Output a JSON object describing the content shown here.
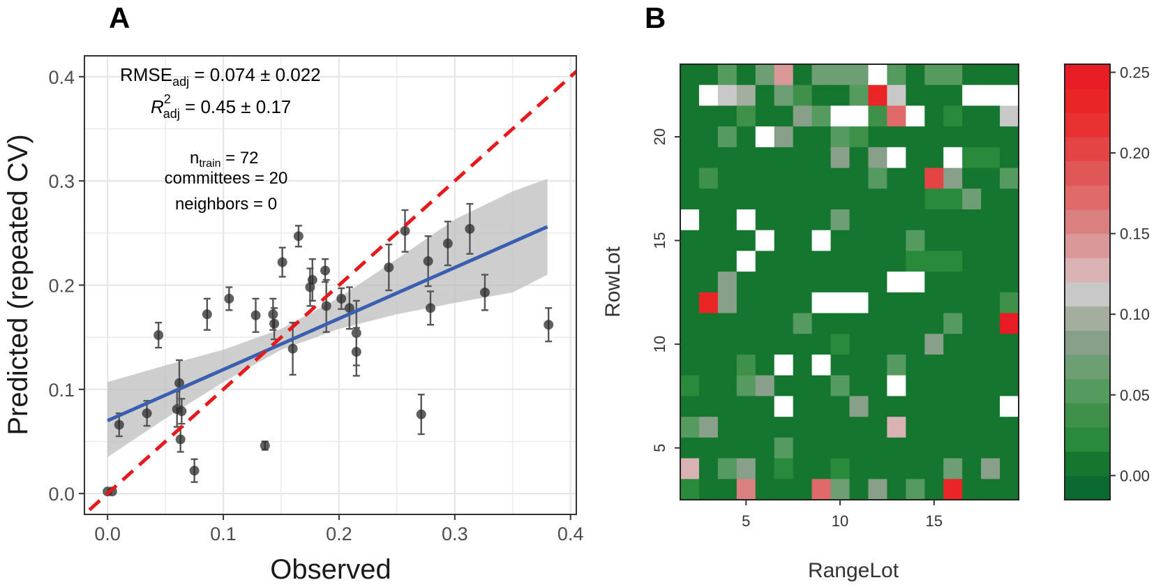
{
  "chart_data": [
    {
      "panel": "A",
      "type": "scatter",
      "xlabel": "Observed",
      "ylabel": "Predicted (repeated CV)",
      "xlim": [
        -0.02,
        0.405
      ],
      "ylim": [
        -0.02,
        0.42
      ],
      "xticks": [
        0.0,
        0.1,
        0.2,
        0.3,
        0.4
      ],
      "xtick_labels": [
        "0.0",
        "0.1",
        "0.2",
        "0.3",
        "0.4"
      ],
      "yticks": [
        0.0,
        0.1,
        0.2,
        0.3,
        0.4
      ],
      "ytick_labels": [
        "0.0",
        "0.1",
        "0.2",
        "0.3",
        "0.4"
      ],
      "grid": true,
      "annotations": {
        "rmse": {
          "base": "RMSE",
          "sub": "adj",
          "value": " = 0.074 ± 0.022"
        },
        "r2": {
          "base": "R",
          "sup": "2",
          "sub": "adj",
          "value": " = 0.45 ± 0.17"
        },
        "ntrain": {
          "base": "n",
          "sub": "train",
          "value": " = 72"
        },
        "committees": "committees = 20",
        "neighbors": "neighbors = 0"
      },
      "identity_line": {
        "style": "dashed",
        "color": "#e41a1c",
        "slope": 1,
        "intercept": 0
      },
      "fit_line": {
        "color": "#3a5fb0",
        "x": [
          0.0,
          0.38
        ],
        "y": [
          0.07,
          0.256
        ]
      },
      "confidence_band": {
        "color": "#bdbdbd",
        "x": [
          0.0,
          0.05,
          0.1,
          0.15,
          0.2,
          0.25,
          0.3,
          0.35,
          0.38
        ],
        "lower": [
          0.035,
          0.072,
          0.107,
          0.138,
          0.158,
          0.172,
          0.183,
          0.193,
          0.21
        ],
        "upper": [
          0.107,
          0.123,
          0.138,
          0.158,
          0.188,
          0.225,
          0.263,
          0.29,
          0.302
        ]
      },
      "points": [
        {
          "x": 0.0,
          "y": 0.002,
          "err": 0.0
        },
        {
          "x": 0.004,
          "y": 0.002,
          "err": 0.0
        },
        {
          "x": 0.01,
          "y": 0.066,
          "err": 0.011
        },
        {
          "x": 0.034,
          "y": 0.077,
          "err": 0.012
        },
        {
          "x": 0.044,
          "y": 0.152,
          "err": 0.012
        },
        {
          "x": 0.06,
          "y": 0.081,
          "err": 0.017
        },
        {
          "x": 0.062,
          "y": 0.106,
          "err": 0.022
        },
        {
          "x": 0.063,
          "y": 0.052,
          "err": 0.012
        },
        {
          "x": 0.064,
          "y": 0.079,
          "err": 0.012
        },
        {
          "x": 0.075,
          "y": 0.022,
          "err": 0.011
        },
        {
          "x": 0.086,
          "y": 0.172,
          "err": 0.015
        },
        {
          "x": 0.105,
          "y": 0.187,
          "err": 0.011
        },
        {
          "x": 0.128,
          "y": 0.171,
          "err": 0.016
        },
        {
          "x": 0.136,
          "y": 0.046,
          "err": 0.004
        },
        {
          "x": 0.143,
          "y": 0.172,
          "err": 0.015
        },
        {
          "x": 0.144,
          "y": 0.163,
          "err": 0.015
        },
        {
          "x": 0.151,
          "y": 0.222,
          "err": 0.014
        },
        {
          "x": 0.16,
          "y": 0.139,
          "err": 0.025
        },
        {
          "x": 0.165,
          "y": 0.247,
          "err": 0.01
        },
        {
          "x": 0.175,
          "y": 0.198,
          "err": 0.018
        },
        {
          "x": 0.177,
          "y": 0.205,
          "err": 0.02
        },
        {
          "x": 0.188,
          "y": 0.214,
          "err": 0.011
        },
        {
          "x": 0.189,
          "y": 0.18,
          "err": 0.025
        },
        {
          "x": 0.202,
          "y": 0.187,
          "err": 0.01
        },
        {
          "x": 0.209,
          "y": 0.178,
          "err": 0.02
        },
        {
          "x": 0.215,
          "y": 0.154,
          "err": 0.031
        },
        {
          "x": 0.215,
          "y": 0.136,
          "err": 0.023
        },
        {
          "x": 0.243,
          "y": 0.217,
          "err": 0.022
        },
        {
          "x": 0.257,
          "y": 0.252,
          "err": 0.02
        },
        {
          "x": 0.271,
          "y": 0.076,
          "err": 0.019
        },
        {
          "x": 0.277,
          "y": 0.223,
          "err": 0.024
        },
        {
          "x": 0.279,
          "y": 0.178,
          "err": 0.016
        },
        {
          "x": 0.294,
          "y": 0.24,
          "err": 0.021
        },
        {
          "x": 0.313,
          "y": 0.254,
          "err": 0.024
        },
        {
          "x": 0.326,
          "y": 0.193,
          "err": 0.017
        },
        {
          "x": 0.381,
          "y": 0.162,
          "err": 0.016
        }
      ]
    },
    {
      "panel": "B",
      "type": "heatmap",
      "xlabel": "RangeLot",
      "ylabel": "RowLot",
      "xlim": [
        1.5,
        19.5
      ],
      "ylim": [
        2.5,
        23.5
      ],
      "xticks": [
        5,
        10,
        15
      ],
      "xtick_labels": [
        "5",
        "10",
        "15"
      ],
      "yticks": [
        5,
        10,
        15,
        20
      ],
      "ytick_labels": [
        "5",
        "10",
        "15",
        "20"
      ],
      "row_values_desc": [
        23,
        22,
        21,
        20,
        19,
        18,
        17,
        16,
        15,
        14,
        13,
        12,
        11,
        10,
        9,
        8,
        7,
        6,
        5,
        4,
        3
      ],
      "col_values": [
        2,
        3,
        4,
        5,
        6,
        7,
        8,
        9,
        10,
        11,
        12,
        13,
        14,
        15,
        16,
        17,
        18,
        19
      ],
      "matrix": [
        [
          0,
          0,
          0.045,
          0,
          0.065,
          0.145,
          0,
          0.07,
          0.07,
          0.07,
          null,
          0.06,
          0,
          0.06,
          0.06,
          0,
          0,
          0
        ],
        [
          0,
          null,
          0.115,
          0.095,
          0,
          0.07,
          0.03,
          0,
          0.01,
          0.055,
          0.235,
          0.115,
          0,
          0,
          0,
          null,
          null,
          null
        ],
        [
          0,
          0,
          0,
          0.03,
          0,
          0,
          0.09,
          0.05,
          null,
          null,
          0.03,
          0.175,
          null,
          0,
          0.02,
          0,
          0,
          0.11
        ],
        [
          0,
          0,
          0.05,
          0,
          null,
          0.09,
          0,
          0,
          0.05,
          0.03,
          0.01,
          0,
          0.01,
          0,
          0,
          0,
          0,
          0.01
        ],
        [
          0,
          0,
          0,
          0,
          0,
          0,
          0,
          0,
          0.09,
          0,
          0.09,
          null,
          0,
          0,
          null,
          0.015,
          0.015,
          0
        ],
        [
          0,
          0.03,
          0,
          0,
          0,
          0.01,
          0,
          0,
          0,
          0,
          0.06,
          0.01,
          0,
          0.21,
          0.09,
          0,
          0,
          0.05
        ],
        [
          0.01,
          0,
          0,
          0,
          0,
          0,
          0,
          0,
          0,
          0,
          0,
          0,
          0,
          0.015,
          0.015,
          0.07,
          0,
          0.01
        ],
        [
          null,
          0,
          0,
          null,
          0,
          0,
          0,
          0.01,
          0.07,
          0,
          0,
          0,
          0,
          0,
          0,
          0,
          0,
          0
        ],
        [
          0,
          0,
          0.01,
          0,
          null,
          0,
          0,
          null,
          0,
          0,
          0,
          0,
          0.05,
          0,
          0,
          0,
          0,
          0
        ],
        [
          0,
          0.01,
          0,
          null,
          0,
          0,
          0,
          0,
          0,
          0,
          0,
          0,
          0.015,
          0.015,
          0.015,
          0,
          0,
          0
        ],
        [
          0,
          0,
          0.09,
          0,
          0,
          0.01,
          0.01,
          0,
          0,
          0,
          0,
          null,
          null,
          0,
          0,
          0,
          0,
          0
        ],
        [
          0,
          0.235,
          0.08,
          0.01,
          0,
          0,
          0,
          null,
          null,
          null,
          0,
          0,
          0,
          0,
          0,
          0,
          0,
          0.03
        ],
        [
          0.01,
          0.01,
          0.01,
          0.01,
          0,
          0,
          0.05,
          0,
          0,
          0,
          0,
          0,
          0,
          0,
          0.06,
          0,
          0,
          0.245
        ],
        [
          0,
          0.01,
          0.01,
          0.01,
          0,
          0.01,
          0.01,
          0.01,
          0.025,
          0,
          0.01,
          0,
          0,
          0.09,
          0,
          0,
          0,
          0
        ],
        [
          0,
          0,
          0,
          0.03,
          0,
          null,
          0,
          null,
          0,
          0,
          0,
          0.06,
          0.01,
          0,
          0,
          0,
          0,
          0
        ],
        [
          0.015,
          0,
          0,
          0.06,
          0.08,
          0.01,
          0,
          0,
          0.06,
          0,
          0.01,
          null,
          0,
          0,
          0,
          0,
          0.01,
          0
        ],
        [
          0,
          0,
          0,
          0,
          0,
          null,
          0,
          0,
          0,
          0.09,
          0,
          0,
          0,
          0,
          0,
          0,
          0,
          null
        ],
        [
          0.06,
          0.09,
          0,
          0.01,
          0,
          0.01,
          0,
          0,
          0.01,
          0,
          0.01,
          0.125,
          0.01,
          0,
          0,
          0,
          0,
          0
        ],
        [
          0,
          0.01,
          0.01,
          0.01,
          0,
          0.05,
          0,
          0,
          0,
          0.01,
          0.01,
          0.01,
          0,
          0,
          0,
          0,
          0,
          0
        ],
        [
          0.12,
          0,
          0.06,
          0.08,
          0,
          0.025,
          0,
          0,
          0.025,
          0,
          0,
          0,
          0.01,
          0.01,
          0.065,
          0,
          0.08,
          0
        ],
        [
          0.025,
          0,
          0,
          0.155,
          0,
          0,
          0,
          0.165,
          0.07,
          0,
          0.09,
          0,
          0.05,
          0,
          0.235,
          0,
          0,
          0
        ]
      ],
      "colorbar": {
        "min": -0.015,
        "max": 0.255,
        "ticks": [
          0.0,
          0.05,
          0.1,
          0.15,
          0.2,
          0.25
        ],
        "tick_labels": [
          "0.00",
          "0.05",
          "0.10",
          "0.15",
          "0.20",
          "0.25"
        ],
        "colors": [
          "#0a6a31",
          "#15762f",
          "#2a8a3c",
          "#3f9048",
          "#559a5e",
          "#6e9e74",
          "#889f8a",
          "#a3ae9f",
          "#c8c8c8",
          "#d9b3b3",
          "#da9898",
          "#db8080",
          "#e06a6a",
          "#e05757",
          "#e54444",
          "#e83232",
          "#ea2525",
          "#e81c24"
        ]
      }
    }
  ],
  "panel_labels": {
    "a": "A",
    "b": "B"
  }
}
